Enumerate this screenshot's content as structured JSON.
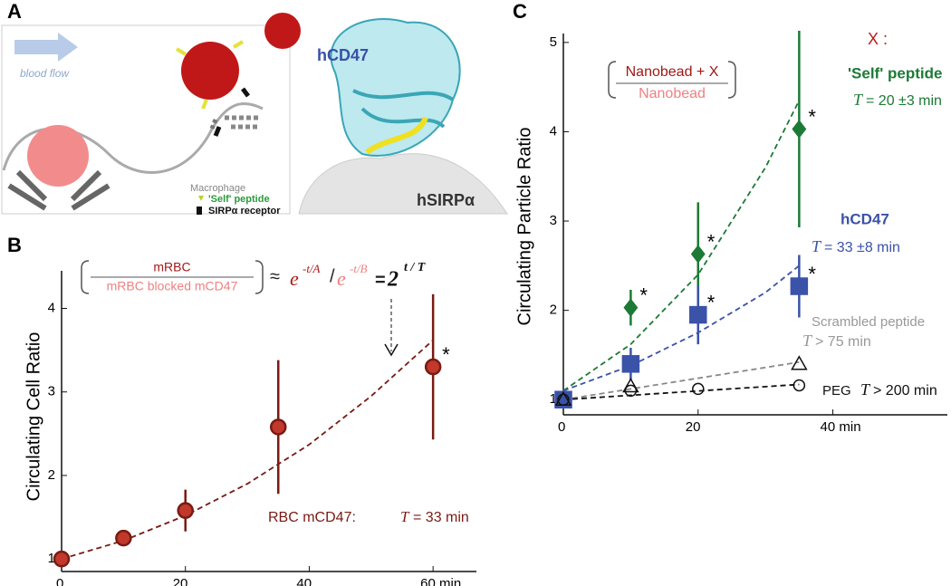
{
  "panel_a": {
    "label": "A",
    "blood_flow": "blood flow",
    "macrophage": "Macrophage",
    "protein": "hCD47",
    "receptor_protein": "hSIRPα",
    "legend": [
      "'Self' peptide",
      "SIRPα receptor"
    ]
  },
  "chart_data": [
    {
      "type": "scatter",
      "panel": "B",
      "y_label": "Circulating Cell Ratio",
      "ratio_numerator": "mRBC",
      "ratio_denominator": "mRBC blocked mCD47",
      "equation": [
        "≈",
        "e",
        "-t/A",
        "/",
        "e",
        "-t/B",
        "=",
        "2",
        "t / T"
      ],
      "annotation": [
        "RBC mCD47:",
        "T",
        "= 33 min"
      ],
      "significance_mark": "*",
      "xlim": [
        0,
        67
      ],
      "ylim": [
        0.85,
        4.45
      ],
      "xticks": [
        0,
        20,
        40,
        {
          "value": 60,
          "label": "60 min"
        }
      ],
      "yticks": [
        1,
        2,
        3,
        4
      ],
      "series": [
        {
          "name": "RBC mCD47",
          "color": "#7a1a14",
          "fill": "#c0392b",
          "x": [
            0,
            10,
            20,
            35,
            60
          ],
          "values": [
            1.0,
            1.25,
            1.58,
            2.58,
            3.3
          ],
          "errors": [
            0,
            0.05,
            0.25,
            0.8,
            0.87
          ],
          "significant": [
            4
          ],
          "fit_x": [
            0,
            10,
            20,
            30,
            40,
            50,
            60
          ],
          "fit_values": [
            1.0,
            1.22,
            1.52,
            1.9,
            2.37,
            2.95,
            3.62
          ]
        }
      ]
    },
    {
      "type": "scatter",
      "panel": "C",
      "y_label": "Circulating Particle Ratio",
      "x_title": "X :",
      "ratio_numerator": "Nanobead + X",
      "ratio_denominator": "Nanobead",
      "significance_mark": "*",
      "xlim": [
        0,
        57
      ],
      "ylim": [
        0.83,
        5.1
      ],
      "xticks": [
        0,
        20,
        {
          "value": 40,
          "label": "40 min"
        }
      ],
      "yticks": [
        1,
        2,
        3,
        4,
        5
      ],
      "series": [
        {
          "name": "'Self' peptide",
          "time": [
            "T",
            "= 20 ±3 min"
          ],
          "color": "#1c7a35",
          "marker": "diamond",
          "x": [
            0,
            10,
            20,
            35
          ],
          "values": [
            1.0,
            2.03,
            2.63,
            4.03
          ],
          "errors": [
            0,
            0.2,
            0.58,
            1.1
          ],
          "significant": [
            1,
            2,
            3
          ],
          "fit_x": [
            0,
            10,
            20,
            30,
            35
          ],
          "fit_values": [
            1.1,
            1.62,
            2.4,
            3.6,
            4.35
          ]
        },
        {
          "name": "hCD47",
          "time": [
            "T",
            "= 33 ±8 min"
          ],
          "color": "#3a52a8",
          "marker": "square",
          "x": [
            0,
            10,
            20,
            35
          ],
          "values": [
            1.0,
            1.4,
            1.95,
            2.27
          ],
          "errors": [
            0,
            0.18,
            0.33,
            0.35
          ],
          "significant": [
            2,
            3
          ],
          "fit_x": [
            0,
            10,
            20,
            30,
            35
          ],
          "fit_values": [
            1.1,
            1.38,
            1.75,
            2.2,
            2.5
          ]
        },
        {
          "name": "Scrambled peptide",
          "time": [
            "T",
            " > 75 min"
          ],
          "color": "#888888",
          "marker": "triangle",
          "x": [
            0,
            10,
            35
          ],
          "values": [
            1.0,
            1.15,
            1.4
          ],
          "errors": [
            0,
            0,
            0
          ],
          "significant": [],
          "fit_x": [
            0,
            35
          ],
          "fit_values": [
            1.0,
            1.42
          ]
        },
        {
          "name": "PEG",
          "time": [
            "T",
            "> 200 min"
          ],
          "color": "#111111",
          "marker": "circle",
          "x": [
            0,
            10,
            20,
            35
          ],
          "values": [
            1.0,
            1.1,
            1.12,
            1.16
          ],
          "errors": [
            0,
            0,
            0,
            0
          ],
          "significant": [],
          "fit_x": [
            0,
            35
          ],
          "fit_values": [
            1.0,
            1.17
          ]
        }
      ]
    }
  ]
}
